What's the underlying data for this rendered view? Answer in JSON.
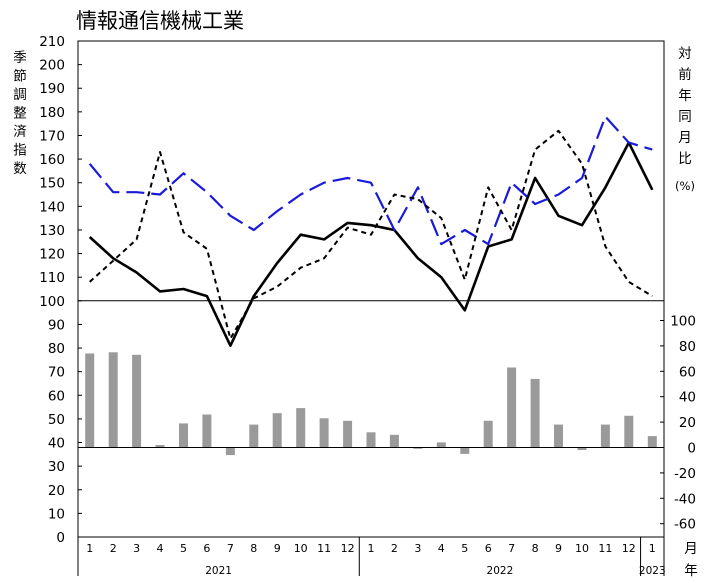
{
  "chart_data": {
    "type": "line",
    "title": "情報通信機械工業",
    "left_axis_label": [
      "季",
      "節",
      "調",
      "整",
      "済",
      "指",
      "数"
    ],
    "right_axis_label": [
      "対",
      "前",
      "年",
      "同",
      "月",
      "比"
    ],
    "right_axis_unit": "(%)",
    "x_unit_month": "月",
    "x_unit_year": "年",
    "categories": [
      "1",
      "2",
      "3",
      "4",
      "5",
      "6",
      "7",
      "8",
      "9",
      "10",
      "11",
      "12",
      "1",
      "2",
      "3",
      "4",
      "5",
      "6",
      "7",
      "8",
      "9",
      "10",
      "11",
      "12",
      "1"
    ],
    "years": [
      {
        "label": "2021",
        "from": 0,
        "to": 11
      },
      {
        "label": "2022",
        "from": 12,
        "to": 23
      },
      {
        "label": "2023",
        "from": 24,
        "to": 24
      }
    ],
    "left_axis": {
      "min": 0,
      "max": 210,
      "ticks": [
        0,
        10,
        20,
        30,
        40,
        50,
        60,
        70,
        80,
        90,
        100,
        110,
        120,
        130,
        140,
        150,
        160,
        170,
        180,
        190,
        200,
        210
      ],
      "reference_line": 100
    },
    "right_axis": {
      "ticks": [
        -60,
        -40,
        -20,
        0,
        20,
        40,
        60,
        80,
        100
      ]
    },
    "series": [
      {
        "values": [
          127,
          118,
          112,
          104,
          105,
          102,
          81,
          102,
          116,
          128,
          126,
          133,
          132,
          130,
          118,
          110,
          96,
          123,
          126,
          152,
          136,
          132,
          148,
          167,
          147
        ],
        "axis": "left",
        "color": "#000000",
        "style": "solid"
      },
      {
        "values": [
          158,
          146,
          146,
          145,
          154,
          146,
          136,
          130,
          138,
          145,
          150,
          152,
          150,
          130,
          148,
          124,
          130,
          124,
          150,
          141,
          145,
          152,
          178,
          167,
          164
        ],
        "axis": "left",
        "color": "#1a1adb",
        "style": "long-dash"
      },
      {
        "values": [
          108,
          117,
          126,
          163,
          129,
          122,
          84,
          101,
          106,
          114,
          118,
          131,
          128,
          145,
          143,
          135,
          109,
          148,
          130,
          164,
          172,
          158,
          123,
          108,
          102
        ],
        "axis": "left",
        "color": "#000000",
        "style": "short-dash"
      },
      {
        "values": [
          74,
          75,
          73,
          2,
          19,
          26,
          -6,
          18,
          27,
          31,
          23,
          21,
          12,
          10,
          -1,
          4,
          -5,
          21,
          63,
          54,
          18,
          -2,
          18,
          25,
          9
        ],
        "axis": "right",
        "color": "#9a9a9a",
        "style": "bar"
      }
    ]
  }
}
